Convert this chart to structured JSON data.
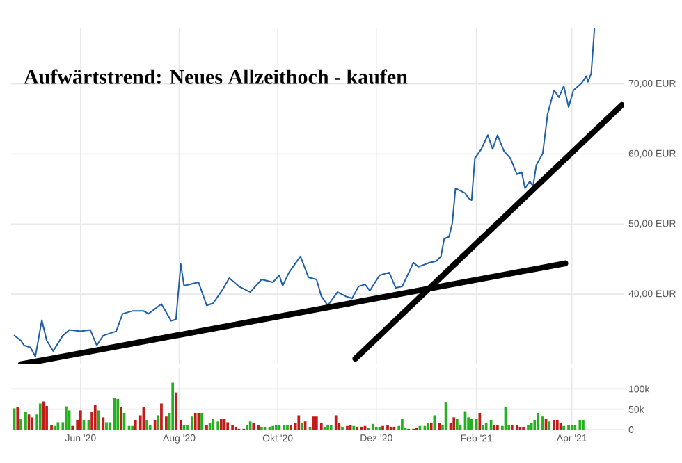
{
  "chart_data": [
    {
      "type": "line",
      "title": "Aufwärtstrend: Neues Allzeithoch - kaufen",
      "xlim": [
        "2020-04-19",
        "2021-05-03"
      ],
      "ylim": [
        30,
        78
      ],
      "xticks": [
        {
          "value": "2020-06-01",
          "label": null
        },
        {
          "value": "2020-08-01",
          "label": null
        },
        {
          "value": "2020-10-01",
          "label": null
        },
        {
          "value": "2020-12-01",
          "label": null
        },
        {
          "value": "2021-02-01",
          "label": null
        },
        {
          "value": "2021-04-01",
          "label": null
        }
      ],
      "yticks": [
        {
          "value": 40,
          "label": "40,00 EUR"
        },
        {
          "value": 50,
          "label": "50,00 EUR"
        },
        {
          "value": 60,
          "label": "60,00 EUR"
        },
        {
          "value": 70,
          "label": "70,00 EUR"
        }
      ],
      "tick_labels": "y",
      "grid": true,
      "series": [
        {
          "color": "#1f5fa8",
          "x": [
            "2020-04-21",
            "2020-04-25",
            "2020-04-27",
            "2020-05-01",
            "2020-05-04",
            "2020-05-08",
            "2020-05-11",
            "2020-05-15",
            "2020-05-21",
            "2020-05-25",
            "2020-06-01",
            "2020-06-07",
            "2020-06-11",
            "2020-06-15",
            "2020-06-23",
            "2020-06-27",
            "2020-07-03",
            "2020-07-10",
            "2020-07-13",
            "2020-07-21",
            "2020-07-27",
            "2020-07-30",
            "2020-08-02",
            "2020-08-04",
            "2020-08-13",
            "2020-08-18",
            "2020-08-22",
            "2020-08-28",
            "2020-09-01",
            "2020-09-07",
            "2020-09-14",
            "2020-09-21",
            "2020-09-28",
            "2020-10-02",
            "2020-10-04",
            "2020-10-08",
            "2020-10-15",
            "2020-10-20",
            "2020-10-25",
            "2020-10-28",
            "2020-11-01",
            "2020-11-07",
            "2020-11-12",
            "2020-11-16",
            "2020-11-20",
            "2020-11-24",
            "2020-11-27",
            "2020-12-03",
            "2020-12-09",
            "2020-12-13",
            "2020-12-17",
            "2020-12-24",
            "2020-12-27",
            "2021-01-03",
            "2021-01-07",
            "2021-01-10",
            "2021-01-12",
            "2021-01-15",
            "2021-01-17",
            "2021-01-19",
            "2021-01-25",
            "2021-01-27",
            "2021-01-29",
            "2021-01-31",
            "2021-02-04",
            "2021-02-08",
            "2021-02-11",
            "2021-02-14",
            "2021-02-18",
            "2021-02-22",
            "2021-02-26",
            "2021-03-01",
            "2021-03-03",
            "2021-03-06",
            "2021-03-08",
            "2021-03-10",
            "2021-03-14",
            "2021-03-17",
            "2021-03-21",
            "2021-03-24",
            "2021-03-27",
            "2021-03-30",
            "2021-04-02",
            "2021-04-07",
            "2021-04-10",
            "2021-04-11",
            "2021-04-13",
            "2021-04-15"
          ],
          "values": [
            34.1,
            33.4,
            32.7,
            32.4,
            31.1,
            36.3,
            33.4,
            31.9,
            34.1,
            34.9,
            34.7,
            34.9,
            32.7,
            34.1,
            34.7,
            37.2,
            37.6,
            37.6,
            37.2,
            38.6,
            36.2,
            36.4,
            44.3,
            41.2,
            41.7,
            38.4,
            38.7,
            40.7,
            42.3,
            41.1,
            40.3,
            42.1,
            41.7,
            42.7,
            41.2,
            43.1,
            45.4,
            42.4,
            42.1,
            39.7,
            38.4,
            40.3,
            39.7,
            39.4,
            41.1,
            41.4,
            40.5,
            42.7,
            43.1,
            40.9,
            41.1,
            44.5,
            43.9,
            44.5,
            44.7,
            45.4,
            47.9,
            48.2,
            50.1,
            55.1,
            54.4,
            53.7,
            53.4,
            59.4,
            60.7,
            62.7,
            60.7,
            62.7,
            60.4,
            59.4,
            57.1,
            57.4,
            55.1,
            56.1,
            55.4,
            58.4,
            60.1,
            65.7,
            69.1,
            68.1,
            69.7,
            66.7,
            69.1,
            70.1,
            71.1,
            70.3,
            71.5,
            77.9
          ]
        },
        {
          "color": "#000000",
          "x": [
            "2020-04-25",
            "2021-03-28"
          ],
          "values": [
            30.0,
            44.4
          ]
        },
        {
          "color": "#000000",
          "x": [
            "2020-11-18",
            "2021-05-02"
          ],
          "values": [
            30.8,
            67.0
          ]
        }
      ]
    },
    {
      "type": "bar",
      "xlim": [
        "2020-04-19",
        "2021-05-03"
      ],
      "ylim": [
        0,
        150000
      ],
      "xticks": [
        {
          "value": "2020-06-01",
          "label": "Jun '20"
        },
        {
          "value": "2020-08-01",
          "label": "Aug '20"
        },
        {
          "value": "2020-10-01",
          "label": "Okt '20"
        },
        {
          "value": "2020-12-01",
          "label": "Dez '20"
        },
        {
          "value": "2021-02-01",
          "label": "Feb '21"
        },
        {
          "value": "2021-04-01",
          "label": "Apr '21"
        }
      ],
      "yticks": [
        {
          "value": 0,
          "label": "0"
        },
        {
          "value": 50000,
          "label": "50k"
        },
        {
          "value": 100000,
          "label": "100k"
        }
      ],
      "grid": true,
      "x": [
        "2020-04-21",
        "2020-04-23",
        "2020-04-25",
        "2020-04-28",
        "2020-04-30",
        "2020-05-02",
        "2020-05-05",
        "2020-05-07",
        "2020-05-09",
        "2020-05-11",
        "2020-05-14",
        "2020-05-16",
        "2020-05-18",
        "2020-05-21",
        "2020-05-23",
        "2020-05-25",
        "2020-05-27",
        "2020-05-30",
        "2020-06-01",
        "2020-06-03",
        "2020-06-06",
        "2020-06-08",
        "2020-06-10",
        "2020-06-12",
        "2020-06-15",
        "2020-06-17",
        "2020-06-19",
        "2020-06-22",
        "2020-06-24",
        "2020-06-26",
        "2020-06-28",
        "2020-07-01",
        "2020-07-03",
        "2020-07-05",
        "2020-07-08",
        "2020-07-10",
        "2020-07-12",
        "2020-07-14",
        "2020-07-17",
        "2020-07-19",
        "2020-07-21",
        "2020-07-24",
        "2020-07-26",
        "2020-07-28",
        "2020-07-30",
        "2020-08-02",
        "2020-08-04",
        "2020-08-06",
        "2020-08-09",
        "2020-08-11",
        "2020-08-13",
        "2020-08-15",
        "2020-08-18",
        "2020-08-20",
        "2020-08-22",
        "2020-08-25",
        "2020-08-27",
        "2020-08-29",
        "2020-08-31",
        "2020-09-03",
        "2020-09-05",
        "2020-09-07",
        "2020-09-10",
        "2020-09-12",
        "2020-09-14",
        "2020-09-16",
        "2020-09-19",
        "2020-09-21",
        "2020-09-23",
        "2020-09-26",
        "2020-09-28",
        "2020-09-30",
        "2020-10-02",
        "2020-10-05",
        "2020-10-07",
        "2020-10-09",
        "2020-10-12",
        "2020-10-14",
        "2020-10-16",
        "2020-10-18",
        "2020-10-21",
        "2020-10-23",
        "2020-10-25",
        "2020-10-28",
        "2020-10-30",
        "2020-11-01",
        "2020-11-03",
        "2020-11-06",
        "2020-11-08",
        "2020-11-10",
        "2020-11-13",
        "2020-11-15",
        "2020-11-17",
        "2020-11-19",
        "2020-11-22",
        "2020-11-24",
        "2020-11-26",
        "2020-11-29",
        "2020-12-01",
        "2020-12-03",
        "2020-12-05",
        "2020-12-08",
        "2020-12-10",
        "2020-12-12",
        "2020-12-15",
        "2020-12-17",
        "2020-12-19",
        "2020-12-21",
        "2020-12-24",
        "2020-12-26",
        "2020-12-28",
        "2020-12-31",
        "2021-01-02",
        "2021-01-04",
        "2021-01-06",
        "2021-01-09",
        "2021-01-11",
        "2021-01-13",
        "2021-01-16",
        "2021-01-18",
        "2021-01-20",
        "2021-01-22",
        "2021-01-25",
        "2021-01-27",
        "2021-01-29",
        "2021-02-01",
        "2021-02-03",
        "2021-02-05",
        "2021-02-07",
        "2021-02-10",
        "2021-02-12",
        "2021-02-14",
        "2021-02-17",
        "2021-02-19",
        "2021-02-21",
        "2021-02-23",
        "2021-02-26",
        "2021-02-28",
        "2021-03-02",
        "2021-03-05",
        "2021-03-07",
        "2021-03-09",
        "2021-03-11",
        "2021-03-14",
        "2021-03-16",
        "2021-03-18",
        "2021-03-21",
        "2021-03-23",
        "2021-03-25",
        "2021-03-27",
        "2021-03-30",
        "2021-04-01",
        "2021-04-03",
        "2021-04-06",
        "2021-04-08"
      ],
      "values": [
        52000,
        55000,
        27000,
        43000,
        37000,
        30000,
        37000,
        64000,
        69000,
        58000,
        12000,
        9000,
        18000,
        18000,
        57000,
        47000,
        9000,
        24000,
        47000,
        24000,
        24000,
        43000,
        60000,
        47000,
        30000,
        18000,
        18000,
        77000,
        75000,
        55000,
        41000,
        9000,
        9000,
        24000,
        35000,
        55000,
        24000,
        12000,
        24000,
        35000,
        64000,
        32000,
        41000,
        115000,
        91000,
        24000,
        12000,
        12000,
        32000,
        41000,
        41000,
        41000,
        12000,
        16000,
        27000,
        20000,
        27000,
        27000,
        18000,
        12000,
        7000,
        2000,
        2000,
        12000,
        20000,
        16000,
        12000,
        7000,
        7000,
        7000,
        9000,
        12000,
        12000,
        12000,
        12000,
        12000,
        16000,
        35000,
        16000,
        20000,
        7000,
        32000,
        32000,
        16000,
        7000,
        12000,
        12000,
        35000,
        16000,
        7000,
        9000,
        11000,
        9000,
        7000,
        7000,
        9000,
        5000,
        14000,
        7000,
        7000,
        9000,
        11000,
        7000,
        7000,
        9000,
        27000,
        5000,
        2000,
        2000,
        5000,
        9000,
        9000,
        16000,
        16000,
        35000,
        16000,
        12000,
        68000,
        16000,
        30000,
        27000,
        12000,
        45000,
        30000,
        27000,
        27000,
        41000,
        12000,
        16000,
        24000,
        12000,
        12000,
        9000,
        55000,
        12000,
        12000,
        12000,
        7000,
        7000,
        12000,
        16000,
        24000,
        41000,
        32000,
        27000,
        20000,
        24000,
        24000,
        16000,
        9000,
        11000,
        11000,
        11000,
        24000,
        24000
      ],
      "colors": [
        "#22b21e",
        "#c41a1a",
        "#22b21e",
        "#22b21e",
        "#c41a1a",
        "#c41a1a",
        "#22b21e",
        "#22b21e",
        "#c41a1a",
        "#c41a1a",
        "#c41a1a",
        "#22b21e",
        "#22b21e",
        "#22b21e",
        "#22b21e",
        "#22b21e",
        "#c41a1a",
        "#c41a1a",
        "#c41a1a",
        "#22b21e",
        "#22b21e",
        "#c41a1a",
        "#c41a1a",
        "#22b21e",
        "#c41a1a",
        "#22b21e",
        "#22b21e",
        "#22b21e",
        "#22b21e",
        "#c41a1a",
        "#22b21e",
        "#22b21e",
        "#22b21e",
        "#c41a1a",
        "#c41a1a",
        "#c41a1a",
        "#22b21e",
        "#22b21e",
        "#c41a1a",
        "#22b21e",
        "#c41a1a",
        "#c41a1a",
        "#22b21e",
        "#22b21e",
        "#c41a1a",
        "#c41a1a",
        "#22b21e",
        "#22b21e",
        "#22b21e",
        "#c41a1a",
        "#c41a1a",
        "#22b21e",
        "#c41a1a",
        "#22b21e",
        "#22b21e",
        "#22b21e",
        "#c41a1a",
        "#c41a1a",
        "#c41a1a",
        "#c41a1a",
        "#c41a1a",
        "#c41a1a",
        "#c41a1a",
        "#22b21e",
        "#22b21e",
        "#c41a1a",
        "#c41a1a",
        "#22b21e",
        "#22b21e",
        "#22b21e",
        "#22b21e",
        "#22b21e",
        "#22b21e",
        "#22b21e",
        "#22b21e",
        "#c41a1a",
        "#c41a1a",
        "#c41a1a",
        "#22b21e",
        "#c41a1a",
        "#22b21e",
        "#c41a1a",
        "#c41a1a",
        "#c41a1a",
        "#22b21e",
        "#22b21e",
        "#22b21e",
        "#c41a1a",
        "#c41a1a",
        "#22b21e",
        "#c41a1a",
        "#c41a1a",
        "#22b21e",
        "#c41a1a",
        "#c41a1a",
        "#c41a1a",
        "#22b21e",
        "#22b21e",
        "#22b21e",
        "#22b21e",
        "#c41a1a",
        "#c41a1a",
        "#c41a1a",
        "#c41a1a",
        "#22b21e",
        "#22b21e",
        "#22b21e",
        "#c41a1a",
        "#c41a1a",
        "#c41a1a",
        "#22b21e",
        "#22b21e",
        "#22b21e",
        "#c41a1a",
        "#22b21e",
        "#c41a1a",
        "#22b21e",
        "#22b21e",
        "#c41a1a",
        "#c41a1a",
        "#22b21e",
        "#22b21e",
        "#22b21e",
        "#22b21e",
        "#22b21e",
        "#22b21e",
        "#c41a1a",
        "#22b21e",
        "#22b21e",
        "#22b21e",
        "#c41a1a",
        "#c41a1a",
        "#22b21e",
        "#22b21e",
        "#22b21e",
        "#c41a1a",
        "#c41a1a",
        "#c41a1a",
        "#c41a1a",
        "#22b21e",
        "#22b21e",
        "#22b21e",
        "#22b21e",
        "#22b21e",
        "#c41a1a",
        "#22b21e",
        "#c41a1a",
        "#c41a1a",
        "#c41a1a",
        "#22b21e",
        "#22b21e",
        "#22b21e",
        "#22b21e",
        "#22b21e",
        "#22b21e"
      ]
    }
  ]
}
